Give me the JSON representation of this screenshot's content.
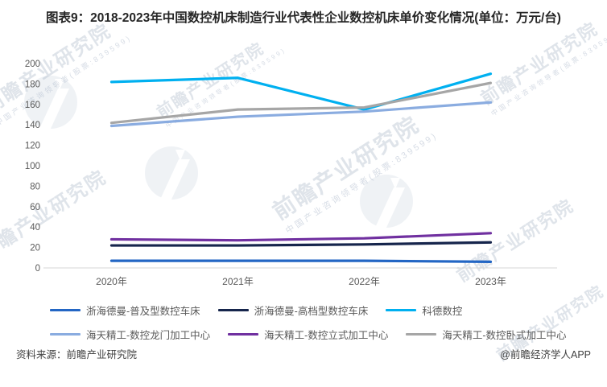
{
  "title": "图表9：2018-2023年中国数控机床制造行业代表性企业数控机床单价变化情况(单位：万元/台)",
  "footer": {
    "source": "资料来源：前瞻产业研究院",
    "credit": "@前瞻经济学人APP"
  },
  "watermark": {
    "text": "前瞻产业研究院",
    "subtext": "中国产业咨询领导者(股票:839599)"
  },
  "colors": {
    "axis_line": "#d6d6d6",
    "tick_label": "#595959",
    "title_text": "#262626",
    "footer_text": "#404040"
  },
  "chart_data": {
    "type": "line",
    "title": "图表9：2018-2023年中国数控机床制造行业代表性企业数控机床单价变化情况(单位：万元/台)",
    "categories": [
      "2020年",
      "2021年",
      "2022年",
      "2023年"
    ],
    "series": [
      {
        "name": "浙海德曼-普及型数控车床",
        "color": "#2366c4",
        "values": [
          7,
          7,
          7,
          6
        ]
      },
      {
        "name": "浙海德曼-高档型数控车床",
        "color": "#16254c",
        "values": [
          22,
          22,
          23,
          25
        ]
      },
      {
        "name": "科德数控",
        "color": "#00b0f0",
        "values": [
          182,
          186,
          155,
          190
        ]
      },
      {
        "name": "海天精工-数控龙门加工中心",
        "color": "#8aace0",
        "values": [
          139,
          148,
          153,
          162
        ]
      },
      {
        "name": "海天精工-数控立式加工中心",
        "color": "#7030a0",
        "values": [
          28,
          27,
          29,
          34
        ]
      },
      {
        "name": "海天精工-数控卧式加工中心",
        "color": "#a6a6a6",
        "values": [
          142,
          155,
          157,
          181
        ]
      }
    ],
    "xlabel": "",
    "ylabel": "",
    "ylim": [
      0,
      200
    ],
    "yticks": [
      0,
      20,
      40,
      60,
      80,
      100,
      120,
      140,
      160,
      180,
      200
    ],
    "grid": false,
    "legend_position": "bottom",
    "legend_rows": [
      [
        0,
        1,
        2
      ],
      [
        3,
        4,
        5
      ]
    ]
  }
}
